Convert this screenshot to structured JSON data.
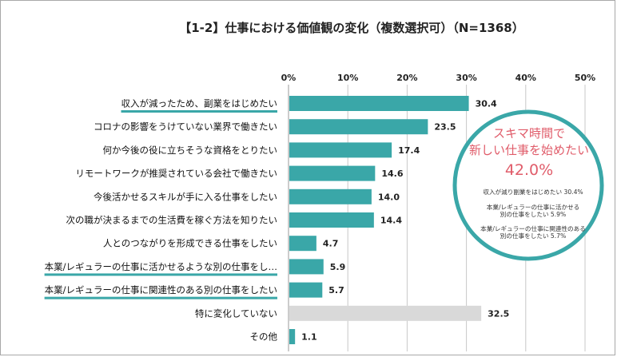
{
  "chart_data": {
    "type": "bar",
    "orientation": "horizontal",
    "title": "【1-2】仕事における価値観の変化（複数選択可）（N=1368）",
    "x_ticks": [
      "0%",
      "10%",
      "20%",
      "30%",
      "40%",
      "50%"
    ],
    "xlim": [
      0,
      50
    ],
    "grid": true,
    "categories": [
      "収入が減ったため、副業をはじめたい",
      "コロナの影響をうけていない業界で働きたい",
      "何か今後の役に立ちそうな資格をとりたい",
      "リモートワークが推奨されている会社で働きたい",
      "今後活かせるスキルが手に入る仕事をしたい",
      "次の職が決まるまでの生活費を稼ぐ方法を知りたい",
      "人とのつながりを形成できる仕事をしたい",
      "本業/レギュラーの仕事に活かせるような別の仕事をし…",
      "本業/レギュラーの仕事に関連性のある別の仕事をしたい",
      "特に変化していない",
      "その他"
    ],
    "values": [
      30.4,
      23.5,
      17.4,
      14.6,
      14.0,
      14.4,
      4.7,
      5.9,
      5.7,
      32.5,
      1.1
    ],
    "value_labels": [
      "30.4",
      "23.5",
      "17.4",
      "14.6",
      "14.0",
      "14.4",
      "4.7",
      "5.9",
      "5.7",
      "32.5",
      "1.1"
    ],
    "highlighted_categories": [
      0,
      7,
      8
    ],
    "colors": {
      "bar": "#3aa7a8",
      "bar_other": "#d9d9d9",
      "underline": "#3aa7a8",
      "callout_border": "#3aa7a8",
      "callout_text": "#e05c6a",
      "grid": "#c8c8c8"
    },
    "annotation": {
      "headline_1": "スキマ時間で",
      "headline_2": "新しい仕事を始めたい",
      "total": "42.0%",
      "items": [
        "収入が減り副業をはじめたい 30.4%",
        "本業/レギュラーの仕事に活かせる",
        "別の仕事をしたい 5.9%",
        "本業/レギュラーの仕事に関連性のある",
        "別の仕事をしたい 5.7%"
      ]
    }
  }
}
